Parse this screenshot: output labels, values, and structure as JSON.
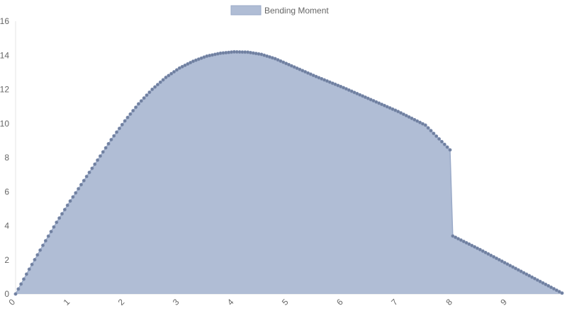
{
  "chart_data": {
    "type": "area",
    "series": [
      {
        "name": "Bending Moment",
        "color": "#9aaac8",
        "fill": "#b0bdd5",
        "point_color": "#6f7f9f",
        "x": [
          0,
          0.25,
          0.5,
          0.75,
          1.0,
          1.25,
          1.5,
          1.75,
          2.0,
          2.25,
          2.5,
          2.75,
          3.0,
          3.25,
          3.5,
          3.75,
          4.0,
          4.25,
          4.5,
          4.75,
          5.0,
          5.5,
          6.0,
          6.5,
          7.0,
          7.5,
          7.95,
          8.0,
          8.5,
          9.0,
          9.5,
          10.0
        ],
        "y": [
          0,
          1.45,
          2.85,
          4.2,
          5.45,
          6.65,
          7.85,
          9.05,
          10.15,
          11.15,
          12.0,
          12.7,
          13.25,
          13.65,
          13.95,
          14.12,
          14.2,
          14.18,
          14.05,
          13.8,
          13.45,
          12.75,
          12.1,
          11.4,
          10.7,
          9.9,
          8.45,
          3.4,
          2.6,
          1.75,
          0.9,
          0.05
        ]
      }
    ],
    "xlim": [
      0,
      10
    ],
    "ylim": [
      0,
      16
    ],
    "x_ticks": [
      "0",
      "1",
      "2",
      "3",
      "4",
      "5",
      "6",
      "7",
      "8",
      "9"
    ],
    "y_ticks": [
      "0",
      "2",
      "4",
      "6",
      "8",
      "10",
      "12",
      "14",
      "16"
    ],
    "legend": {
      "position": "top-center",
      "items": [
        "Bending Moment"
      ]
    },
    "grid": false
  }
}
